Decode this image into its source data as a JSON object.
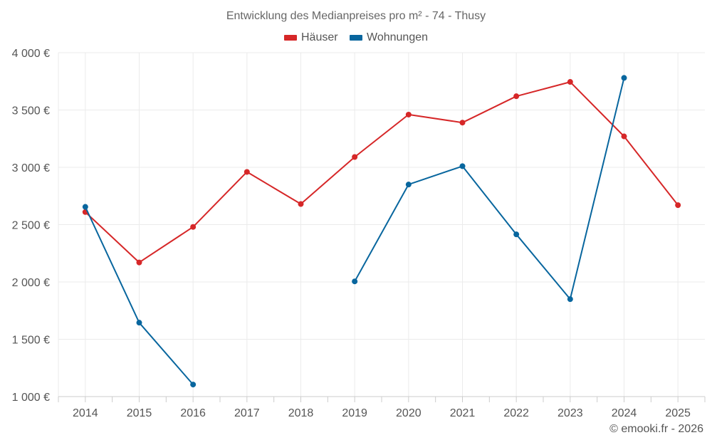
{
  "chart_data": {
    "type": "line",
    "title": "Entwicklung des Medianpreises pro m² - 74 - Thusy",
    "xlabel": "",
    "ylabel": "",
    "categories": [
      "2014",
      "2015",
      "2016",
      "2017",
      "2018",
      "2019",
      "2020",
      "2021",
      "2022",
      "2023",
      "2024",
      "2025"
    ],
    "ylim": [
      1000,
      4000
    ],
    "yticks": [
      1000,
      1500,
      2000,
      2500,
      3000,
      3500,
      4000
    ],
    "ytick_labels": [
      "1 000 €",
      "1 500 €",
      "2 000 €",
      "2 500 €",
      "3 000 €",
      "3 500 €",
      "4 000 €"
    ],
    "grid": true,
    "legend_position": "top-center",
    "series": [
      {
        "name": "Häuser",
        "color": "#d62728",
        "values": [
          2610,
          2170,
          2480,
          2960,
          2680,
          3090,
          3460,
          3390,
          3620,
          3745,
          3270,
          2670
        ]
      },
      {
        "name": "Wohnungen",
        "color": "#08669e",
        "values": [
          2655,
          1645,
          1105,
          null,
          null,
          2005,
          2850,
          3010,
          2415,
          1850,
          3780,
          null
        ]
      }
    ]
  },
  "credit": "© emooki.fr - 2026"
}
